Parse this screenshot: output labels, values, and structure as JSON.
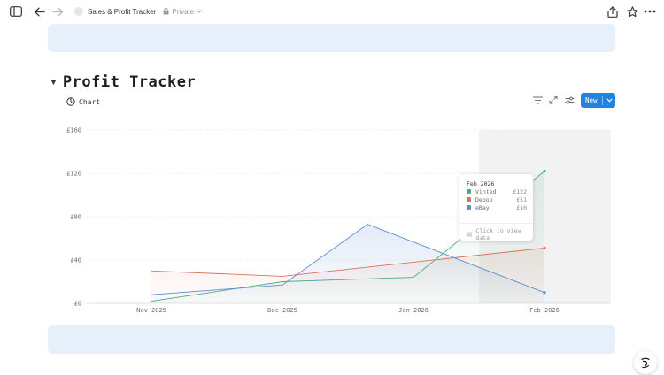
{
  "topbar": {
    "page_title": "Sales & Profit Tracker",
    "privacy": "Private",
    "icons": [
      "sidebar-toggle-icon",
      "back-arrow-icon",
      "forward-arrow-icon",
      "lock-icon",
      "share-icon",
      "star-icon",
      "more-icon"
    ]
  },
  "heading": {
    "title": "Profit Tracker"
  },
  "view": {
    "tab_label": "Chart",
    "new_label": "New"
  },
  "toolbar_icons": [
    "filter-icon",
    "expand-icon",
    "settings-sliders-icon"
  ],
  "colors": {
    "accent": "#2383e2",
    "callout": "#e6f0fb",
    "vinted": "#4daa7c",
    "depop": "#d9735e",
    "ebay": "#5b8fd1"
  },
  "chart_data": {
    "type": "line",
    "categories": [
      "Nov 2025",
      "Dec 2025",
      "Jan 2026",
      "Feb 2026"
    ],
    "yticks": [
      "£0",
      "£40",
      "£80",
      "£120",
      "£160"
    ],
    "ylim": [
      0,
      160
    ],
    "grid": true,
    "series": [
      {
        "name": "Vinted",
        "color": "#4daa7c",
        "points": [
          [
            0,
            2
          ],
          [
            1,
            20
          ],
          [
            2,
            24
          ],
          [
            3,
            122
          ]
        ]
      },
      {
        "name": "Depop",
        "color": "#d9735e",
        "points": [
          [
            0,
            30
          ],
          [
            1,
            25
          ],
          [
            2,
            38
          ],
          [
            3,
            51
          ]
        ]
      },
      {
        "name": "eBay",
        "color": "#5b8fd1",
        "points": [
          [
            0,
            8
          ],
          [
            1,
            17
          ],
          [
            1.65,
            73
          ],
          [
            3,
            10
          ]
        ]
      }
    ],
    "highlight_category": 3,
    "tooltip": {
      "title": "Feb 2026",
      "rows": [
        {
          "name": "Vinted",
          "value": "£122"
        },
        {
          "name": "Depop",
          "value": "£51"
        },
        {
          "name": "eBay",
          "value": "£10"
        }
      ],
      "link": "Click to view data"
    }
  }
}
